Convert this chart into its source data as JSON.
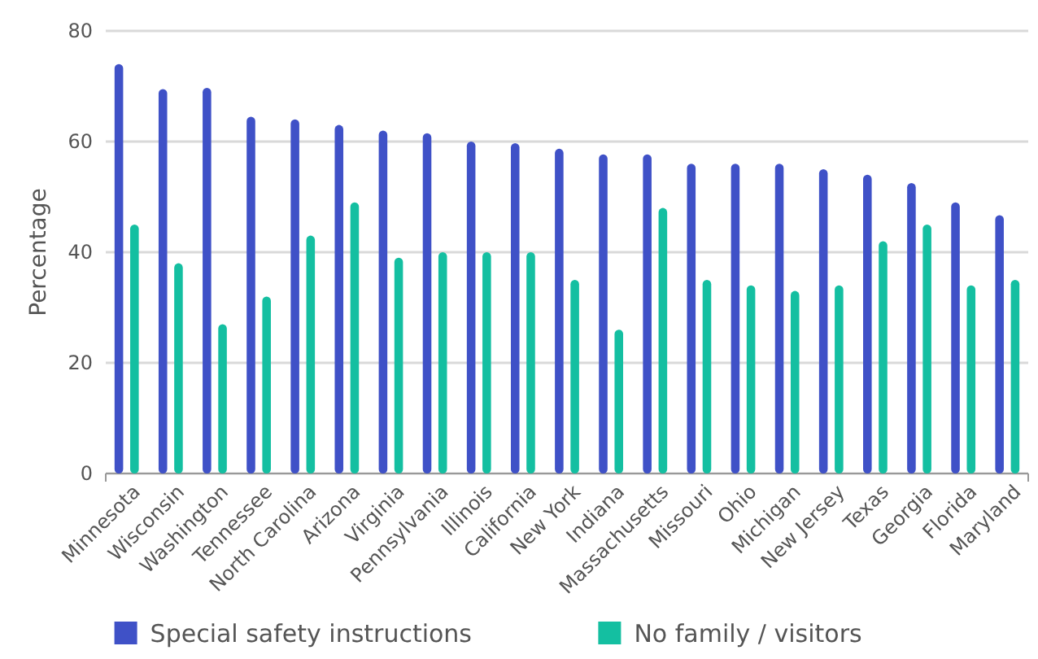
{
  "chart_data": {
    "type": "bar",
    "ylabel": "Percentage",
    "categories": [
      "Minnesota",
      "Wisconsin",
      "Washington",
      "Tennessee",
      "North Carolina",
      "Arizona",
      "Virginia",
      "Pennsylvania",
      "Illinois",
      "California",
      "New York",
      "Indiana",
      "Massachusetts",
      "Missouri",
      "Ohio",
      "Michigan",
      "New Jersey",
      "Texas",
      "Georgia",
      "Florida",
      "Maryland"
    ],
    "series": [
      {
        "name": "Special safety instructions",
        "color": "#3f51c7",
        "values": [
          74,
          69.5,
          69.7,
          64.5,
          64,
          63,
          62,
          61.5,
          60,
          59.7,
          58.7,
          57.7,
          57.7,
          56,
          56,
          56,
          55,
          54,
          52.5,
          49,
          46.7
        ]
      },
      {
        "name": "No family / visitors",
        "color": "#14bfa1",
        "values": [
          45,
          38,
          27,
          32,
          43,
          49,
          39,
          40,
          40,
          40,
          35,
          26,
          48,
          35,
          34,
          33,
          34,
          42,
          45,
          34,
          35
        ]
      }
    ],
    "ylim": [
      0,
      80
    ],
    "yticks": [
      0,
      20,
      40,
      60,
      80
    ],
    "grid": "y",
    "legend": "bottom"
  }
}
